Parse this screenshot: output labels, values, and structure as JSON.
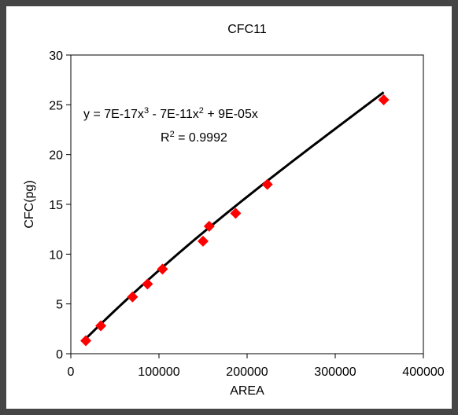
{
  "chart_data": {
    "type": "scatter",
    "title": "CFC11",
    "xlabel": "AREA",
    "ylabel": "CFC(pg)",
    "xlim": [
      0,
      400000
    ],
    "ylim": [
      0,
      30
    ],
    "x_ticks": [
      "0",
      "100000",
      "200000",
      "300000",
      "400000"
    ],
    "y_ticks": [
      "0",
      "5",
      "10",
      "15",
      "20",
      "25",
      "30"
    ],
    "grid": false,
    "legend": "none",
    "marker_color": "#ff0000",
    "trendline_color": "#000000",
    "series": [
      {
        "points": [
          {
            "x": 17000,
            "y": 1.3
          },
          {
            "x": 34000,
            "y": 2.8
          },
          {
            "x": 70000,
            "y": 5.7
          },
          {
            "x": 87000,
            "y": 7.0
          },
          {
            "x": 104000,
            "y": 8.5
          },
          {
            "x": 150000,
            "y": 11.3
          },
          {
            "x": 157000,
            "y": 12.8
          },
          {
            "x": 187000,
            "y": 14.1
          },
          {
            "x": 223000,
            "y": 17.0
          },
          {
            "x": 355000,
            "y": 25.5
          }
        ]
      }
    ],
    "trendline": {
      "type": "polynomial",
      "coefficients": {
        "a3": 7e-17,
        "a2": -7e-11,
        "a1": 9e-05,
        "a0": 0
      },
      "x_range": [
        17000,
        355000
      ]
    },
    "annotations": {
      "equation_prefix": "y = 7E-17x",
      "equation_sup1": "3",
      "equation_mid1": " - 7E-11x",
      "equation_sup2": "2",
      "equation_suffix": " + 9E-05x",
      "r2_prefix": "R",
      "r2_sup": "2",
      "r2_suffix": " = 0.9992"
    }
  }
}
